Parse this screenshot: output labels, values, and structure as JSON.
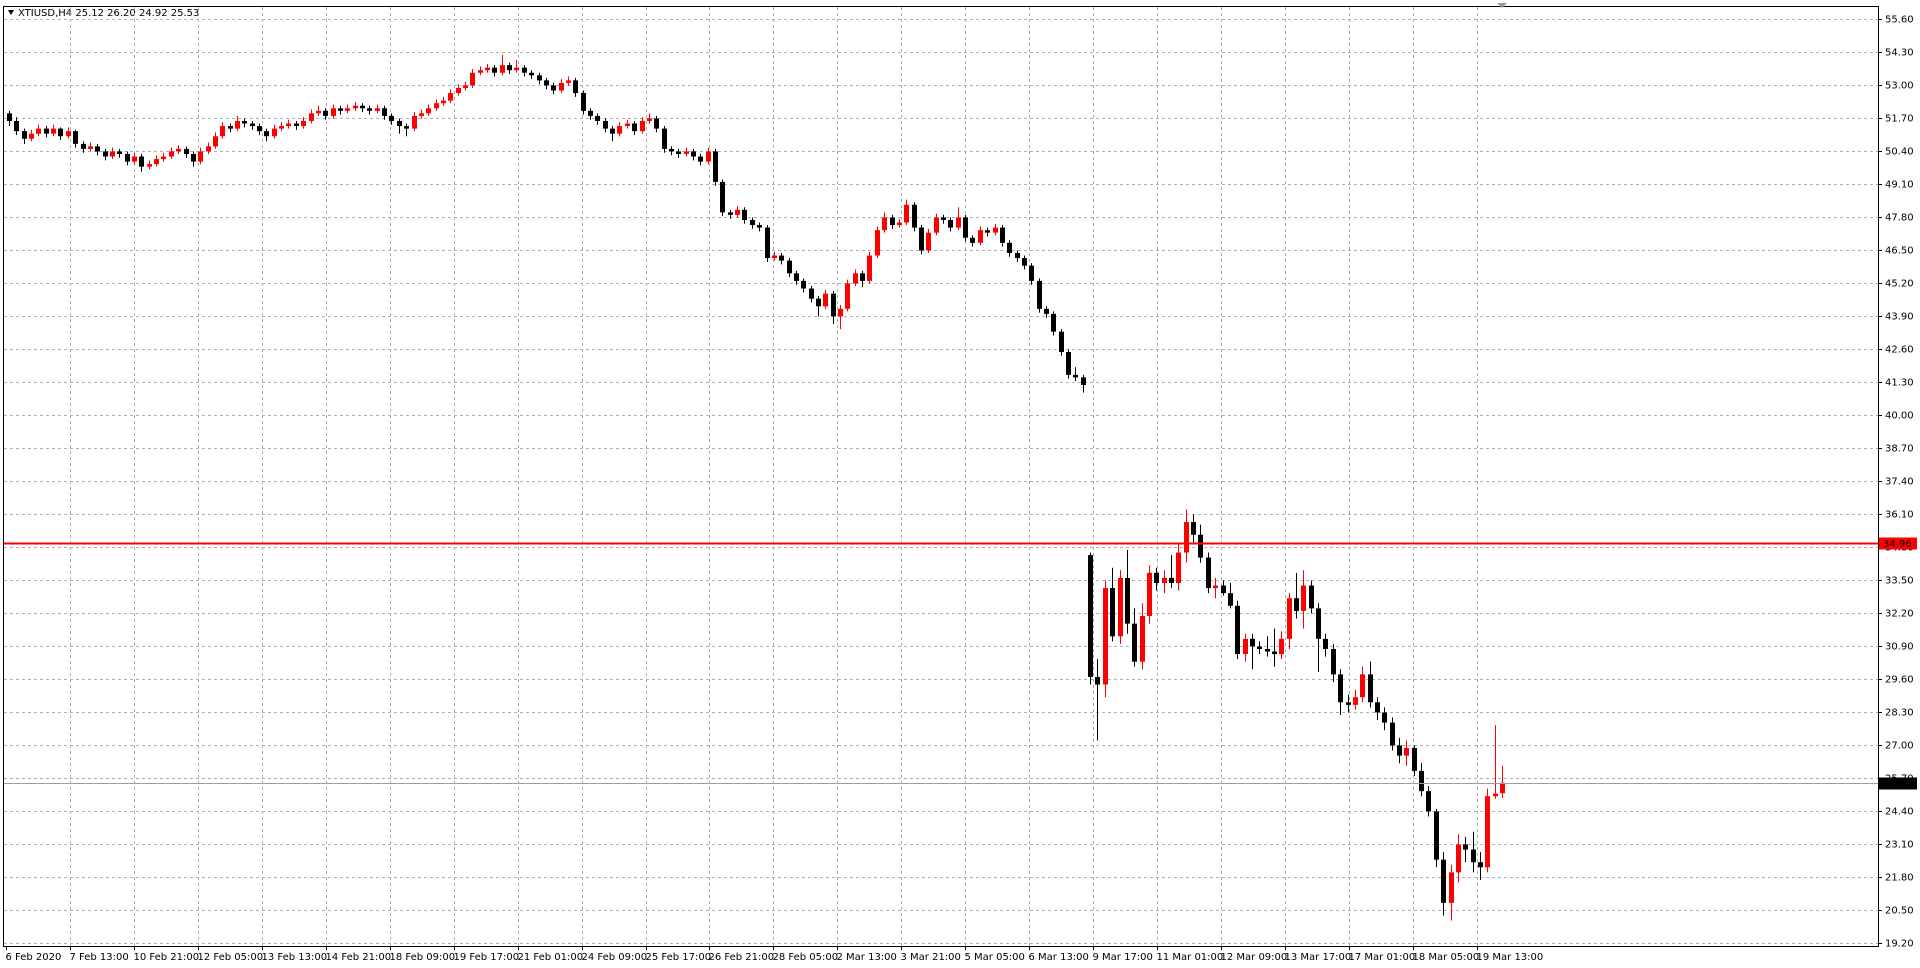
{
  "chart_data": {
    "type": "candlestick",
    "title": "XTIUSD,H4  25.12 26.20 24.92 25.53",
    "up_color": "#ff0000",
    "down_color": "#000000",
    "grid": true,
    "ylim": [
      19.1,
      56.09
    ],
    "yticks": [
      {
        "value": 19.2,
        "label": "19.20"
      },
      {
        "value": 20.5,
        "label": "20.50"
      },
      {
        "value": 21.8,
        "label": "21.80"
      },
      {
        "value": 23.1,
        "label": "23.10"
      },
      {
        "value": 24.4,
        "label": "24.40"
      },
      {
        "value": 25.7,
        "label": "25.70"
      },
      {
        "value": 27.0,
        "label": "27.00"
      },
      {
        "value": 28.3,
        "label": "28.30"
      },
      {
        "value": 29.6,
        "label": "29.60"
      },
      {
        "value": 30.9,
        "label": "30.90"
      },
      {
        "value": 32.2,
        "label": "32.20"
      },
      {
        "value": 33.5,
        "label": "33.50"
      },
      {
        "value": 34.8,
        "label": "34.80"
      },
      {
        "value": 36.1,
        "label": "36.10"
      },
      {
        "value": 37.4,
        "label": "37.40"
      },
      {
        "value": 38.7,
        "label": "38.70"
      },
      {
        "value": 40.0,
        "label": "40.00"
      },
      {
        "value": 41.3,
        "label": "41.30"
      },
      {
        "value": 42.6,
        "label": "42.60"
      },
      {
        "value": 43.9,
        "label": "43.90"
      },
      {
        "value": 45.2,
        "label": "45.20"
      },
      {
        "value": 46.5,
        "label": "46.50"
      },
      {
        "value": 47.8,
        "label": "47.80"
      },
      {
        "value": 49.1,
        "label": "49.10"
      },
      {
        "value": 50.4,
        "label": "50.40"
      },
      {
        "value": 51.7,
        "label": "51.70"
      },
      {
        "value": 53.0,
        "label": "53.00"
      },
      {
        "value": 54.3,
        "label": "54.30"
      },
      {
        "value": 55.6,
        "label": "55.60"
      }
    ],
    "levels": [
      {
        "value": 34.96,
        "label": "34.96",
        "color": "#ff0000",
        "text_color": "#ffffff"
      },
      {
        "value": 25.53,
        "label": "25.53",
        "color": "#8fa0b4",
        "text_color": "#ffffff"
      }
    ],
    "time_labels": [
      "6 Feb 2020",
      "7 Feb 13:00",
      "10 Feb 21:00",
      "12 Feb 05:00",
      "13 Feb 13:00",
      "14 Feb 21:00",
      "18 Feb 09:00",
      "19 Feb 17:00",
      "21 Feb 01:00",
      "24 Feb 09:00",
      "25 Feb 17:00",
      "26 Feb 21:00",
      "28 Feb 05:00",
      "2 Mar 13:00",
      "3 Mar 21:00",
      "5 Mar 05:00",
      "6 Mar 13:00",
      "9 Mar 17:00",
      "11 Mar 01:00",
      "12 Mar 09:00",
      "13 Mar 17:00",
      "17 Mar 01:00",
      "18 Mar 05:00",
      "19 Mar 13:00"
    ],
    "ohlc": [
      [
        51.9,
        52.0,
        51.4,
        51.6
      ],
      [
        51.6,
        51.75,
        51.05,
        51.2
      ],
      [
        51.2,
        51.3,
        50.7,
        50.9
      ],
      [
        50.9,
        51.25,
        50.8,
        51.1
      ],
      [
        51.1,
        51.45,
        51.0,
        51.3
      ],
      [
        51.3,
        51.4,
        50.95,
        51.1
      ],
      [
        51.1,
        51.45,
        51.0,
        51.3
      ],
      [
        51.3,
        51.35,
        50.85,
        51.0
      ],
      [
        51.0,
        51.35,
        50.9,
        51.2
      ],
      [
        51.2,
        51.25,
        50.55,
        50.7
      ],
      [
        50.7,
        50.8,
        50.35,
        50.5
      ],
      [
        50.5,
        50.75,
        50.4,
        50.6
      ],
      [
        50.6,
        50.7,
        50.25,
        50.4
      ],
      [
        50.4,
        50.5,
        50.05,
        50.2
      ],
      [
        50.2,
        50.55,
        50.1,
        50.4
      ],
      [
        50.4,
        50.5,
        50.15,
        50.3
      ],
      [
        50.3,
        50.4,
        49.85,
        50.0
      ],
      [
        50.0,
        50.35,
        49.9,
        50.2
      ],
      [
        50.2,
        50.3,
        49.6,
        49.8
      ],
      [
        49.8,
        50.05,
        49.7,
        49.9
      ],
      [
        49.9,
        50.25,
        49.8,
        50.1
      ],
      [
        50.1,
        50.35,
        50.0,
        50.2
      ],
      [
        50.2,
        50.55,
        50.1,
        50.4
      ],
      [
        50.4,
        50.65,
        50.3,
        50.5
      ],
      [
        50.5,
        50.6,
        50.15,
        50.3
      ],
      [
        50.3,
        50.4,
        49.8,
        50.0
      ],
      [
        50.0,
        50.55,
        49.9,
        50.4
      ],
      [
        50.4,
        50.75,
        50.3,
        50.6
      ],
      [
        50.6,
        51.15,
        50.5,
        51.0
      ],
      [
        51.0,
        51.55,
        50.9,
        51.4
      ],
      [
        51.4,
        51.5,
        51.15,
        51.3
      ],
      [
        51.3,
        51.8,
        51.2,
        51.6
      ],
      [
        51.6,
        51.7,
        51.35,
        51.5
      ],
      [
        51.5,
        51.6,
        51.25,
        51.4
      ],
      [
        51.4,
        51.5,
        51.05,
        51.2
      ],
      [
        51.2,
        51.3,
        50.8,
        51.0
      ],
      [
        51.0,
        51.45,
        50.9,
        51.3
      ],
      [
        51.3,
        51.55,
        51.2,
        51.4
      ],
      [
        51.4,
        51.65,
        51.3,
        51.5
      ],
      [
        51.5,
        51.6,
        51.25,
        51.4
      ],
      [
        51.4,
        51.75,
        51.3,
        51.6
      ],
      [
        51.6,
        52.05,
        51.5,
        51.9
      ],
      [
        51.9,
        52.2,
        51.8,
        52.0
      ],
      [
        52.0,
        52.1,
        51.65,
        51.8
      ],
      [
        51.8,
        52.25,
        51.7,
        52.1
      ],
      [
        52.1,
        52.2,
        51.85,
        52.0
      ],
      [
        52.0,
        52.25,
        51.9,
        52.1
      ],
      [
        52.1,
        52.35,
        52.0,
        52.2
      ],
      [
        52.2,
        52.3,
        51.95,
        52.1
      ],
      [
        52.1,
        52.2,
        51.85,
        52.0
      ],
      [
        52.0,
        52.25,
        51.9,
        52.1
      ],
      [
        52.1,
        52.2,
        51.65,
        51.8
      ],
      [
        51.8,
        51.9,
        51.45,
        51.6
      ],
      [
        51.6,
        51.7,
        51.1,
        51.4
      ],
      [
        51.4,
        51.5,
        51.0,
        51.3
      ],
      [
        51.3,
        51.95,
        51.2,
        51.8
      ],
      [
        51.8,
        52.05,
        51.7,
        51.9
      ],
      [
        51.9,
        52.25,
        51.8,
        52.1
      ],
      [
        52.1,
        52.45,
        52.0,
        52.3
      ],
      [
        52.3,
        52.55,
        52.2,
        52.4
      ],
      [
        52.4,
        52.85,
        52.3,
        52.7
      ],
      [
        52.7,
        53.05,
        52.6,
        52.9
      ],
      [
        52.9,
        53.15,
        52.8,
        53.0
      ],
      [
        53.0,
        53.65,
        52.9,
        53.5
      ],
      [
        53.5,
        53.75,
        53.4,
        53.6
      ],
      [
        53.6,
        53.85,
        53.5,
        53.7
      ],
      [
        53.7,
        53.8,
        53.35,
        53.5
      ],
      [
        53.5,
        54.2,
        53.4,
        53.8
      ],
      [
        53.8,
        53.9,
        53.45,
        53.6
      ],
      [
        53.6,
        54.0,
        53.5,
        53.7
      ],
      [
        53.7,
        53.8,
        53.35,
        53.5
      ],
      [
        53.5,
        53.6,
        53.25,
        53.4
      ],
      [
        53.4,
        53.5,
        53.05,
        53.2
      ],
      [
        53.2,
        53.3,
        52.85,
        53.0
      ],
      [
        53.0,
        53.1,
        52.65,
        52.8
      ],
      [
        52.8,
        53.25,
        52.7,
        53.1
      ],
      [
        53.1,
        53.35,
        53.0,
        53.2
      ],
      [
        53.2,
        53.3,
        52.55,
        52.7
      ],
      [
        52.7,
        52.8,
        51.85,
        52.0
      ],
      [
        52.0,
        52.1,
        51.65,
        51.8
      ],
      [
        51.8,
        51.9,
        51.45,
        51.6
      ],
      [
        51.6,
        51.7,
        51.15,
        51.3
      ],
      [
        51.3,
        51.4,
        50.8,
        51.1
      ],
      [
        51.1,
        51.55,
        51.0,
        51.4
      ],
      [
        51.4,
        51.65,
        51.3,
        51.5
      ],
      [
        51.5,
        51.6,
        51.05,
        51.2
      ],
      [
        51.2,
        51.75,
        51.1,
        51.6
      ],
      [
        51.6,
        51.9,
        51.5,
        51.7
      ],
      [
        51.7,
        51.8,
        51.15,
        51.3
      ],
      [
        51.3,
        51.4,
        50.35,
        50.5
      ],
      [
        50.5,
        50.6,
        50.25,
        50.4
      ],
      [
        50.4,
        50.5,
        50.15,
        50.3
      ],
      [
        50.3,
        50.55,
        50.2,
        50.4
      ],
      [
        50.4,
        50.5,
        50.05,
        50.2
      ],
      [
        50.2,
        50.3,
        49.85,
        50.0
      ],
      [
        50.0,
        50.55,
        49.9,
        50.4
      ],
      [
        50.4,
        50.5,
        49.05,
        49.2
      ],
      [
        49.2,
        49.3,
        47.85,
        48.0
      ],
      [
        48.0,
        48.1,
        47.75,
        47.9
      ],
      [
        47.9,
        48.25,
        47.8,
        48.1
      ],
      [
        48.1,
        48.2,
        47.55,
        47.7
      ],
      [
        47.7,
        47.8,
        47.35,
        47.5
      ],
      [
        47.5,
        47.6,
        47.25,
        47.4
      ],
      [
        47.4,
        47.5,
        46.05,
        46.2
      ],
      [
        46.2,
        46.45,
        46.1,
        46.3
      ],
      [
        46.3,
        46.4,
        45.95,
        46.1
      ],
      [
        46.1,
        46.2,
        45.45,
        45.6
      ],
      [
        45.6,
        45.7,
        45.15,
        45.3
      ],
      [
        45.3,
        45.4,
        44.85,
        45.0
      ],
      [
        45.0,
        45.1,
        44.45,
        44.6
      ],
      [
        44.6,
        44.7,
        43.9,
        44.3
      ],
      [
        44.3,
        44.95,
        44.2,
        44.8
      ],
      [
        44.8,
        44.9,
        43.6,
        43.9
      ],
      [
        43.9,
        44.35,
        43.4,
        44.2
      ],
      [
        44.2,
        45.35,
        44.1,
        45.2
      ],
      [
        45.2,
        45.75,
        45.1,
        45.6
      ],
      [
        45.6,
        45.7,
        45.05,
        45.3
      ],
      [
        45.3,
        46.45,
        45.2,
        46.3
      ],
      [
        46.3,
        47.45,
        46.2,
        47.3
      ],
      [
        47.3,
        48.0,
        47.2,
        47.8
      ],
      [
        47.8,
        47.9,
        47.35,
        47.5
      ],
      [
        47.5,
        47.75,
        47.4,
        47.6
      ],
      [
        47.6,
        48.5,
        47.5,
        48.3
      ],
      [
        48.3,
        48.4,
        47.25,
        47.4
      ],
      [
        47.4,
        47.5,
        46.35,
        46.5
      ],
      [
        46.5,
        47.35,
        46.4,
        47.2
      ],
      [
        47.2,
        47.95,
        47.1,
        47.8
      ],
      [
        47.8,
        47.9,
        47.55,
        47.7
      ],
      [
        47.7,
        47.8,
        47.25,
        47.4
      ],
      [
        47.4,
        48.2,
        47.3,
        47.8
      ],
      [
        47.8,
        47.9,
        46.85,
        47.0
      ],
      [
        47.0,
        47.1,
        46.65,
        46.8
      ],
      [
        46.8,
        47.45,
        46.7,
        47.3
      ],
      [
        47.3,
        47.4,
        47.05,
        47.2
      ],
      [
        47.2,
        47.55,
        47.1,
        47.4
      ],
      [
        47.4,
        47.5,
        46.65,
        46.8
      ],
      [
        46.8,
        46.9,
        46.25,
        46.4
      ],
      [
        46.4,
        46.5,
        46.05,
        46.2
      ],
      [
        46.2,
        46.3,
        45.75,
        45.9
      ],
      [
        45.9,
        46.0,
        45.15,
        45.3
      ],
      [
        45.3,
        45.4,
        44.05,
        44.2
      ],
      [
        44.2,
        44.3,
        43.85,
        44.0
      ],
      [
        44.0,
        44.1,
        43.15,
        43.3
      ],
      [
        43.3,
        43.4,
        42.35,
        42.5
      ],
      [
        42.5,
        42.6,
        41.45,
        41.6
      ],
      [
        41.6,
        41.9,
        41.35,
        41.5
      ],
      [
        41.5,
        41.6,
        40.9,
        41.2
      ],
      [
        34.5,
        34.6,
        29.4,
        29.7
      ],
      [
        29.7,
        30.4,
        27.2,
        29.4
      ],
      [
        29.4,
        33.5,
        28.9,
        33.2
      ],
      [
        33.2,
        34.0,
        31.1,
        31.3
      ],
      [
        31.3,
        33.9,
        31.0,
        33.6
      ],
      [
        33.6,
        34.7,
        31.4,
        31.8
      ],
      [
        31.8,
        32.4,
        30.1,
        30.3
      ],
      [
        30.3,
        32.6,
        30.0,
        32.1
      ],
      [
        32.1,
        34.1,
        31.8,
        33.8
      ],
      [
        33.8,
        34.0,
        33.1,
        33.4
      ],
      [
        33.4,
        33.9,
        33.0,
        33.6
      ],
      [
        33.6,
        34.5,
        33.2,
        33.4
      ],
      [
        33.4,
        35.0,
        33.1,
        34.6
      ],
      [
        34.6,
        36.3,
        34.2,
        35.8
      ],
      [
        35.8,
        36.1,
        35.0,
        35.3
      ],
      [
        35.3,
        35.7,
        34.2,
        34.4
      ],
      [
        34.4,
        34.6,
        33.0,
        33.2
      ],
      [
        33.2,
        33.6,
        32.8,
        33.3
      ],
      [
        33.3,
        33.5,
        32.9,
        33.0
      ],
      [
        33.0,
        33.4,
        32.4,
        32.5
      ],
      [
        32.5,
        32.7,
        30.4,
        30.6
      ],
      [
        30.6,
        31.4,
        30.3,
        31.2
      ],
      [
        31.2,
        31.4,
        30.0,
        30.9
      ],
      [
        30.9,
        31.1,
        30.6,
        30.8
      ],
      [
        30.8,
        31.3,
        30.5,
        30.7
      ],
      [
        30.7,
        31.6,
        30.1,
        30.6
      ],
      [
        30.6,
        31.5,
        30.4,
        31.2
      ],
      [
        31.2,
        33.0,
        30.8,
        32.8
      ],
      [
        32.8,
        33.8,
        32.0,
        32.3
      ],
      [
        32.3,
        33.9,
        31.6,
        33.3
      ],
      [
        33.3,
        33.5,
        32.2,
        32.4
      ],
      [
        32.4,
        32.6,
        29.9,
        31.2
      ],
      [
        31.2,
        31.4,
        30.5,
        30.8
      ],
      [
        30.8,
        31.0,
        29.5,
        29.8
      ],
      [
        29.8,
        30.0,
        28.2,
        28.7
      ],
      [
        28.7,
        29.0,
        28.3,
        28.6
      ],
      [
        28.6,
        29.2,
        28.4,
        28.9
      ],
      [
        28.9,
        30.1,
        28.7,
        29.8
      ],
      [
        29.8,
        30.3,
        28.5,
        28.7
      ],
      [
        28.7,
        28.9,
        28.0,
        28.3
      ],
      [
        28.3,
        28.5,
        27.6,
        27.9
      ],
      [
        27.9,
        28.1,
        26.8,
        27.0
      ],
      [
        27.0,
        27.3,
        26.3,
        26.6
      ],
      [
        26.6,
        27.2,
        26.2,
        26.9
      ],
      [
        26.9,
        27.0,
        25.8,
        26.0
      ],
      [
        26.0,
        26.3,
        25.0,
        25.2
      ],
      [
        25.2,
        25.4,
        24.2,
        24.4
      ],
      [
        24.4,
        24.5,
        22.2,
        22.5
      ],
      [
        22.5,
        22.8,
        20.3,
        20.8
      ],
      [
        20.8,
        22.3,
        20.1,
        22.0
      ],
      [
        22.0,
        23.5,
        21.6,
        23.1
      ],
      [
        23.1,
        23.4,
        22.4,
        22.9
      ],
      [
        22.9,
        23.6,
        22.0,
        22.4
      ],
      [
        22.4,
        22.8,
        21.7,
        22.2
      ],
      [
        22.2,
        25.3,
        22.0,
        25.0
      ],
      [
        25.0,
        27.8,
        24.9,
        25.1
      ],
      [
        25.12,
        26.2,
        24.92,
        25.53
      ]
    ]
  }
}
